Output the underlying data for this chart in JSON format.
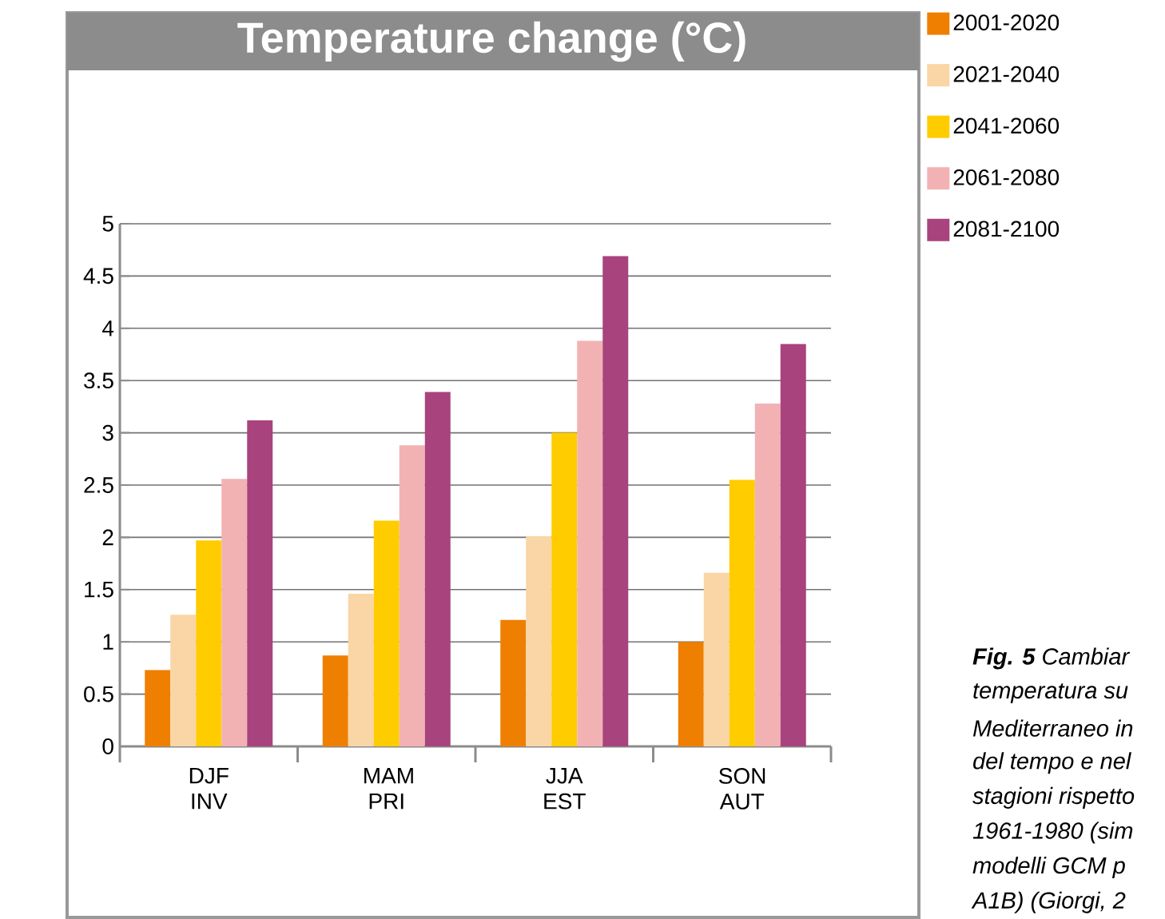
{
  "chart_data": {
    "type": "bar",
    "title": "Temperature change (°C)",
    "categories": [
      "DJF INV",
      "MAM PRI",
      "JJA EST",
      "SON AUT"
    ],
    "series": [
      {
        "name": "2001-2020",
        "color": "#ee7f00",
        "values": [
          0.73,
          0.87,
          1.21,
          1.0
        ]
      },
      {
        "name": "2021-2040",
        "color": "#fad5a5",
        "values": [
          1.26,
          1.46,
          2.01,
          1.66
        ]
      },
      {
        "name": "2041-2060",
        "color": "#ffcc00",
        "values": [
          1.97,
          2.16,
          3.0,
          2.55
        ]
      },
      {
        "name": "2061-2080",
        "color": "#f2b2b4",
        "values": [
          2.56,
          2.88,
          3.88,
          3.28
        ]
      },
      {
        "name": "2081-2100",
        "color": "#a8437e",
        "values": [
          3.12,
          3.39,
          4.69,
          3.85
        ]
      }
    ],
    "ylim": [
      0,
      5
    ],
    "yticks": [
      0,
      0.5,
      1,
      1.5,
      2,
      2.5,
      3,
      3.5,
      4,
      4.5,
      5
    ],
    "grid": "y",
    "legend": "top right",
    "annotations": [
      "**Fig. 5** Cambiar",
      "temperatura su",
      "Mediterraneo in",
      "del tempo e nel",
      "stagioni rispetto",
      "1961-1980 (sim",
      "modelli GCM p",
      "A1B) (Giorgi, 2"
    ]
  }
}
